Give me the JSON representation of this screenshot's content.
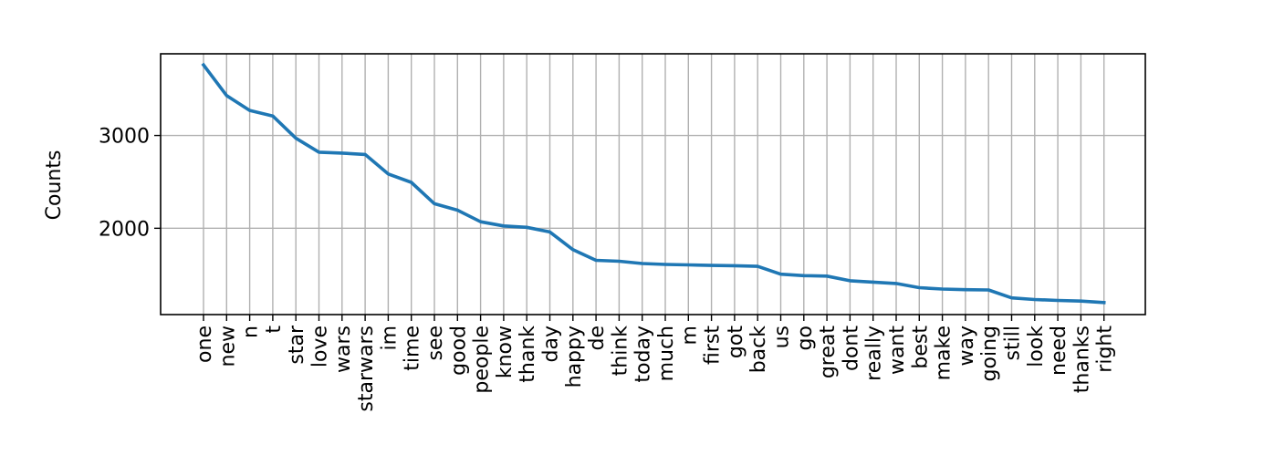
{
  "chart_data": {
    "type": "line",
    "title": "",
    "xlabel": "",
    "ylabel": "Counts",
    "categories": [
      "one",
      "new",
      "n",
      "t",
      "star",
      "love",
      "wars",
      "starwars",
      "im",
      "time",
      "see",
      "good",
      "people",
      "know",
      "thank",
      "day",
      "happy",
      "de",
      "think",
      "today",
      "much",
      "m",
      "first",
      "got",
      "back",
      "us",
      "go",
      "great",
      "dont",
      "really",
      "want",
      "best",
      "make",
      "way",
      "going",
      "still",
      "look",
      "need",
      "thanks",
      "right"
    ],
    "series": [
      {
        "color": "#1f77b4",
        "values": [
          3760,
          3430,
          3270,
          3210,
          2970,
          2820,
          2810,
          2795,
          2585,
          2495,
          2265,
          2195,
          2070,
          2025,
          2010,
          1960,
          1770,
          1655,
          1645,
          1620,
          1610,
          1605,
          1600,
          1597,
          1590,
          1505,
          1490,
          1485,
          1435,
          1420,
          1405,
          1360,
          1345,
          1338,
          1335,
          1250,
          1232,
          1222,
          1215,
          1200
        ]
      }
    ],
    "yticks": [
      2000,
      3000
    ],
    "ylim": [
      1070,
      3880
    ],
    "grid": true,
    "colors": {
      "line": "#1f77b4",
      "grid": "#b0b0b0"
    }
  }
}
